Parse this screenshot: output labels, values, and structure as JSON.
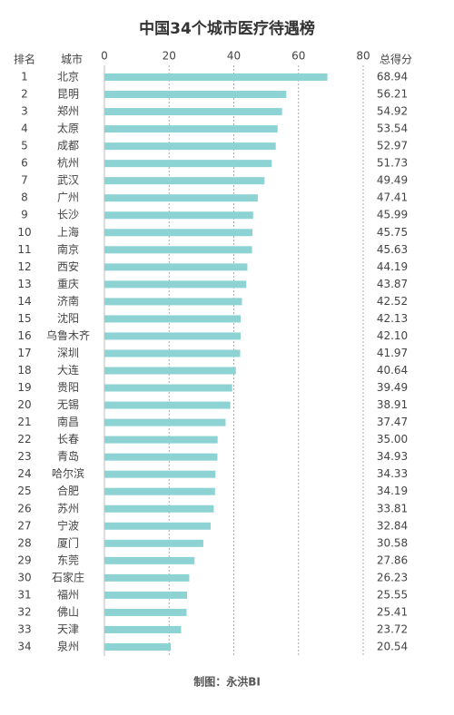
{
  "chart_data": {
    "type": "bar",
    "title": "中国34个城市医疗待遇榜",
    "rank_header": "排名",
    "city_header": "城市",
    "score_header": "总得分",
    "footer": "制图：永洪BI",
    "ranks": [
      1,
      2,
      3,
      4,
      5,
      6,
      7,
      8,
      9,
      10,
      11,
      12,
      13,
      14,
      15,
      16,
      17,
      18,
      19,
      20,
      21,
      22,
      23,
      24,
      25,
      26,
      27,
      28,
      29,
      30,
      31,
      32,
      33,
      34
    ],
    "categories": [
      "北京",
      "昆明",
      "郑州",
      "太原",
      "成都",
      "杭州",
      "武汉",
      "广州",
      "长沙",
      "上海",
      "南京",
      "西安",
      "重庆",
      "济南",
      "沈阳",
      "乌鲁木齐",
      "深圳",
      "大连",
      "贵阳",
      "无锡",
      "南昌",
      "长春",
      "青岛",
      "哈尔滨",
      "合肥",
      "苏州",
      "宁波",
      "厦门",
      "东莞",
      "石家庄",
      "福州",
      "佛山",
      "天津",
      "泉州"
    ],
    "values": [
      68.94,
      56.21,
      54.92,
      53.54,
      52.97,
      51.73,
      49.49,
      47.41,
      45.99,
      45.75,
      45.63,
      44.19,
      43.87,
      42.52,
      42.13,
      42.1,
      41.97,
      40.64,
      39.49,
      38.91,
      37.47,
      35,
      34.93,
      34.33,
      34.19,
      33.81,
      32.84,
      30.58,
      27.86,
      26.23,
      25.55,
      25.41,
      23.72,
      20.54
    ],
    "value_labels": [
      "68.94",
      "56.21",
      "54.92",
      "53.54",
      "52.97",
      "51.73",
      "49.49",
      "47.41",
      "45.99",
      "45.75",
      "45.63",
      "44.19",
      "43.87",
      "42.52",
      "42.13",
      "42.10",
      "41.97",
      "40.64",
      "39.49",
      "38.91",
      "37.47",
      "35.00",
      "34.93",
      "34.33",
      "34.19",
      "33.81",
      "32.84",
      "30.58",
      "27.86",
      "26.23",
      "25.55",
      "25.41",
      "23.72",
      "20.54"
    ],
    "color": "#8dd3d3",
    "xlim": [
      0,
      80
    ],
    "xticks": [
      0,
      20,
      40,
      60,
      80
    ],
    "grid": true
  }
}
